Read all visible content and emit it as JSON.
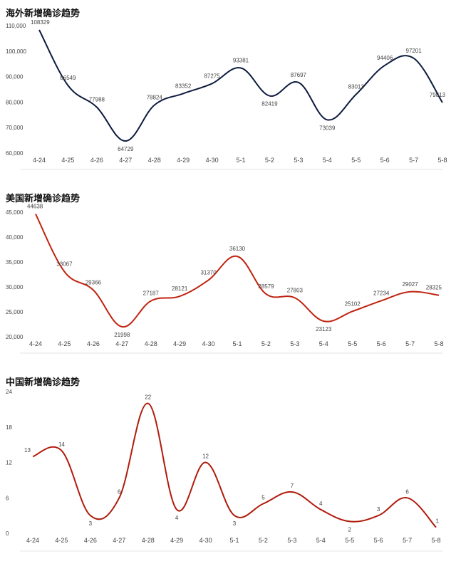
{
  "chart_data": [
    {
      "type": "line",
      "title": "海外新增确诊趋势",
      "categories": [
        "4-24",
        "4-25",
        "4-26",
        "4-27",
        "4-28",
        "4-29",
        "4-30",
        "5-1",
        "5-2",
        "5-3",
        "5-4",
        "5-5",
        "5-6",
        "5-7",
        "5-8"
      ],
      "values": [
        108329,
        86549,
        77988,
        64729,
        78824,
        83352,
        87275,
        93381,
        82419,
        87697,
        73039,
        83013,
        94406,
        97201,
        79813
      ],
      "yticks": [
        60000,
        70000,
        80000,
        90000,
        100000,
        110000
      ],
      "ytick_labels": [
        "60,000",
        "70,000",
        "80,000",
        "90,000",
        "100,000",
        "110,000"
      ],
      "ylim": [
        60000,
        110000
      ],
      "line_color": "#0d1b3e",
      "grid": false
    },
    {
      "type": "line",
      "title": "美国新增确诊趋势",
      "categories": [
        "4-24",
        "4-25",
        "4-26",
        "4-27",
        "4-28",
        "4-29",
        "4-30",
        "5-1",
        "5-2",
        "5-3",
        "5-4",
        "5-5",
        "5-6",
        "5-7",
        "5-8"
      ],
      "values": [
        44638,
        33067,
        29366,
        21998,
        27187,
        28121,
        31370,
        36130,
        28579,
        27803,
        23123,
        25102,
        27234,
        29027,
        28325
      ],
      "yticks": [
        20000,
        25000,
        30000,
        35000,
        40000,
        45000
      ],
      "ytick_labels": [
        "20,000",
        "25,000",
        "30,000",
        "35,000",
        "40,000",
        "45,000"
      ],
      "ylim": [
        20000,
        45000
      ],
      "line_color": "#c0230f",
      "grid": false
    },
    {
      "type": "line",
      "title": "中国新增确诊趋势",
      "categories": [
        "4-24",
        "4-25",
        "4-26",
        "4-27",
        "4-28",
        "4-29",
        "4-30",
        "5-1",
        "5-2",
        "5-3",
        "5-4",
        "5-5",
        "5-6",
        "5-7",
        "5-8"
      ],
      "values": [
        13,
        14,
        3,
        6,
        22,
        4,
        12,
        3,
        5,
        7,
        4,
        2,
        3,
        6,
        1
      ],
      "yticks": [
        0,
        6,
        12,
        18,
        24
      ],
      "ytick_labels": [
        "0",
        "6",
        "12",
        "18",
        "24"
      ],
      "ylim": [
        0,
        24
      ],
      "line_color": "#b01c0c",
      "grid": false
    }
  ]
}
